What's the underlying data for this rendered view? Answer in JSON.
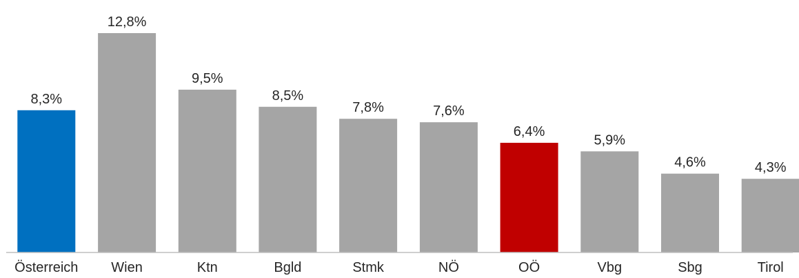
{
  "chart_data": {
    "type": "bar",
    "title": "",
    "xlabel": "",
    "ylabel": "",
    "categories": [
      "Österreich",
      "Wien",
      "Ktn",
      "Bgld",
      "Stmk",
      "NÖ",
      "OÖ",
      "Vbg",
      "Sbg",
      "Tirol"
    ],
    "values": [
      8.3,
      12.8,
      9.5,
      8.5,
      7.8,
      7.6,
      6.4,
      5.9,
      4.6,
      4.3
    ],
    "value_labels": [
      "8,3%",
      "12,8%",
      "9,5%",
      "8,5%",
      "7,8%",
      "7,6%",
      "6,4%",
      "5,9%",
      "4,6%",
      "4,3%"
    ],
    "ylim": [
      0,
      12.8
    ],
    "grid": false,
    "legend": "none",
    "colors": {
      "default": "#a5a5a5",
      "Österreich": "#0070c0",
      "OÖ": "#c00000",
      "axis": "#bfbfbf",
      "text": "#262626"
    }
  }
}
